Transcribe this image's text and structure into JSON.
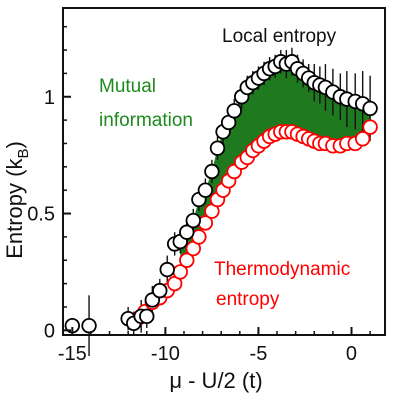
{
  "chart_data": {
    "type": "scatter",
    "xlabel": "μ - U/2 (t)",
    "ylabel": "Entropy (k",
    "ylabel_sub": "B",
    "ylabel_close": ")",
    "xlim": [
      -15.5,
      1.8
    ],
    "ylim": [
      -0.02,
      1.38
    ],
    "x_ticks": [
      -15,
      -10,
      -5,
      0
    ],
    "x_tick_labels": [
      "-15",
      "-10",
      "-5",
      "0"
    ],
    "y_ticks": [
      0,
      0.5,
      1
    ],
    "y_tick_labels": [
      "0",
      "0.5",
      "1"
    ],
    "grid": false,
    "annotations": {
      "local": "Local entropy",
      "mutual_line1": "Mutual",
      "mutual_line2": "information",
      "thermo_line1": "Thermodynamic",
      "thermo_line2": "entropy"
    },
    "colors": {
      "local_edge": "#000000",
      "thermo_edge": "#ff0000",
      "mutual_fill": "#1f7a1f",
      "mutual_text": "#1e8a1e"
    },
    "series": [
      {
        "key": "local",
        "x": [
          -15.0,
          -14.1,
          -12.0,
          -11.7,
          -11.3,
          -11.0,
          -10.7,
          -10.3,
          -9.9,
          -9.5,
          -9.2,
          -8.85,
          -8.5,
          -8.2,
          -7.85,
          -7.5,
          -7.2,
          -6.9,
          -6.6,
          -6.3,
          -5.9,
          -5.6,
          -5.3,
          -5.0,
          -4.7,
          -4.4,
          -4.1,
          -3.8,
          -3.5,
          -3.2,
          -2.9,
          -2.6,
          -2.3,
          -2.0,
          -1.7,
          -1.4,
          -1.0,
          -0.6,
          -0.25,
          0.2,
          0.6,
          1.0
        ],
        "y": [
          0.02,
          0.02,
          0.05,
          0.03,
          0.06,
          0.06,
          0.13,
          0.17,
          0.26,
          0.37,
          0.38,
          0.42,
          0.47,
          0.56,
          0.6,
          0.68,
          0.78,
          0.85,
          0.89,
          0.94,
          1.0,
          1.04,
          1.06,
          1.08,
          1.1,
          1.12,
          1.13,
          1.15,
          1.14,
          1.15,
          1.12,
          1.1,
          1.08,
          1.06,
          1.05,
          1.04,
          1.02,
          1.0,
          0.99,
          0.98,
          0.97,
          0.95
        ],
        "yerr": [
          0.03,
          0.13,
          0.05,
          0.05,
          0.07,
          0.05,
          0.06,
          0.05,
          0.06,
          0.05,
          0.05,
          0.05,
          0.05,
          0.05,
          0.05,
          0.05,
          0.05,
          0.05,
          0.05,
          0.05,
          0.05,
          0.05,
          0.05,
          0.05,
          0.05,
          0.05,
          0.05,
          0.05,
          0.06,
          0.06,
          0.06,
          0.06,
          0.06,
          0.08,
          0.08,
          0.1,
          0.1,
          0.1,
          0.12,
          0.12,
          0.14,
          0.14
        ]
      },
      {
        "key": "thermo",
        "x": [
          -11.5,
          -11.1,
          -10.7,
          -10.3,
          -9.9,
          -9.5,
          -9.2,
          -8.85,
          -8.5,
          -8.2,
          -7.85,
          -7.5,
          -7.2,
          -6.9,
          -6.6,
          -6.3,
          -5.9,
          -5.6,
          -5.3,
          -5.0,
          -4.7,
          -4.4,
          -4.1,
          -3.8,
          -3.5,
          -3.2,
          -2.9,
          -2.6,
          -2.3,
          -2.0,
          -1.7,
          -1.4,
          -1.0,
          -0.6,
          -0.25,
          0.2,
          0.6,
          1.0
        ],
        "y": [
          0.05,
          0.08,
          0.12,
          0.14,
          0.17,
          0.2,
          0.25,
          0.3,
          0.35,
          0.4,
          0.46,
          0.51,
          0.56,
          0.6,
          0.64,
          0.68,
          0.72,
          0.74,
          0.77,
          0.79,
          0.81,
          0.83,
          0.84,
          0.85,
          0.85,
          0.85,
          0.84,
          0.83,
          0.82,
          0.81,
          0.8,
          0.8,
          0.79,
          0.79,
          0.8,
          0.8,
          0.82,
          0.87
        ]
      }
    ]
  }
}
